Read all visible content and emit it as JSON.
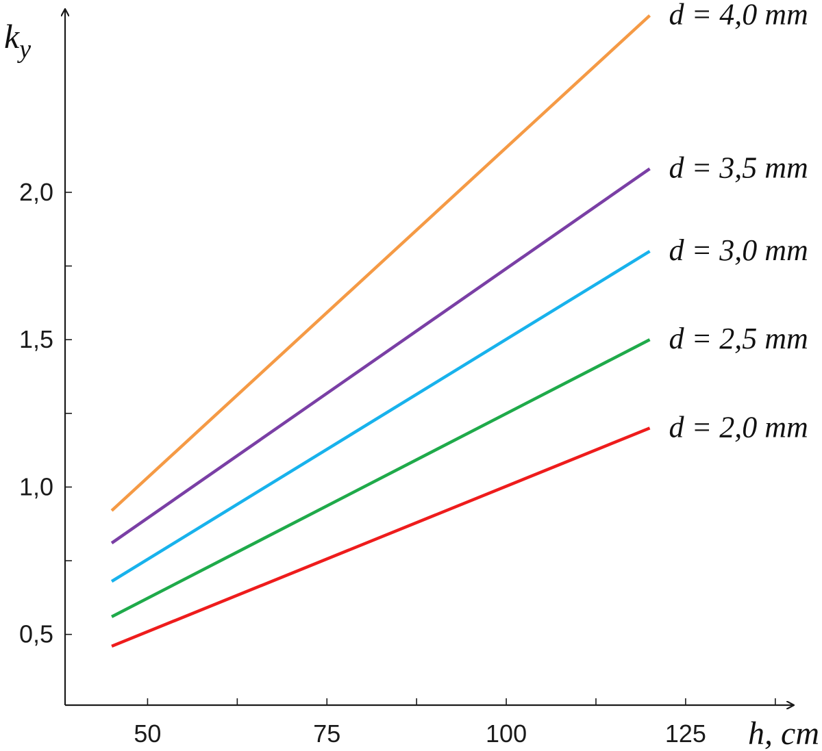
{
  "chart_data": {
    "type": "line",
    "title": "",
    "xlabel": "h, cm",
    "ylabel": "k",
    "ylabel_subscript": "y",
    "xlim": [
      38.5,
      140
    ],
    "ylim": [
      0.26,
      2.62
    ],
    "xticks": [
      {
        "value": 50,
        "label": "50"
      },
      {
        "value": 75,
        "label": "75"
      },
      {
        "value": 100,
        "label": "100"
      },
      {
        "value": 125,
        "label": "125"
      }
    ],
    "xminor": [
      62.5,
      87.5,
      112.5,
      137.5
    ],
    "yticks": [
      {
        "value": 0.5,
        "label": "0,5"
      },
      {
        "value": 1.0,
        "label": "1,0"
      },
      {
        "value": 1.5,
        "label": "1,5"
      },
      {
        "value": 2.0,
        "label": "2,0"
      }
    ],
    "yminor": [
      0.75,
      1.25,
      1.75
    ],
    "grid": false,
    "series": [
      {
        "name": "d = 2,0 mm",
        "color": "#ee1c1c",
        "x": [
          45,
          120
        ],
        "y": [
          0.46,
          1.2
        ]
      },
      {
        "name": "d = 2,5 mm",
        "color": "#1faa4a",
        "x": [
          45,
          120
        ],
        "y": [
          0.56,
          1.5
        ]
      },
      {
        "name": "d = 3,0 mm",
        "color": "#18b2ec",
        "x": [
          45,
          120
        ],
        "y": [
          0.68,
          1.8
        ]
      },
      {
        "name": "d = 3,5 mm",
        "color": "#7a3fa5",
        "x": [
          45,
          120
        ],
        "y": [
          0.81,
          2.08
        ]
      },
      {
        "name": "d = 4,0 mm",
        "color": "#f59a45",
        "x": [
          45,
          120
        ],
        "y": [
          0.92,
          2.6
        ]
      }
    ]
  }
}
